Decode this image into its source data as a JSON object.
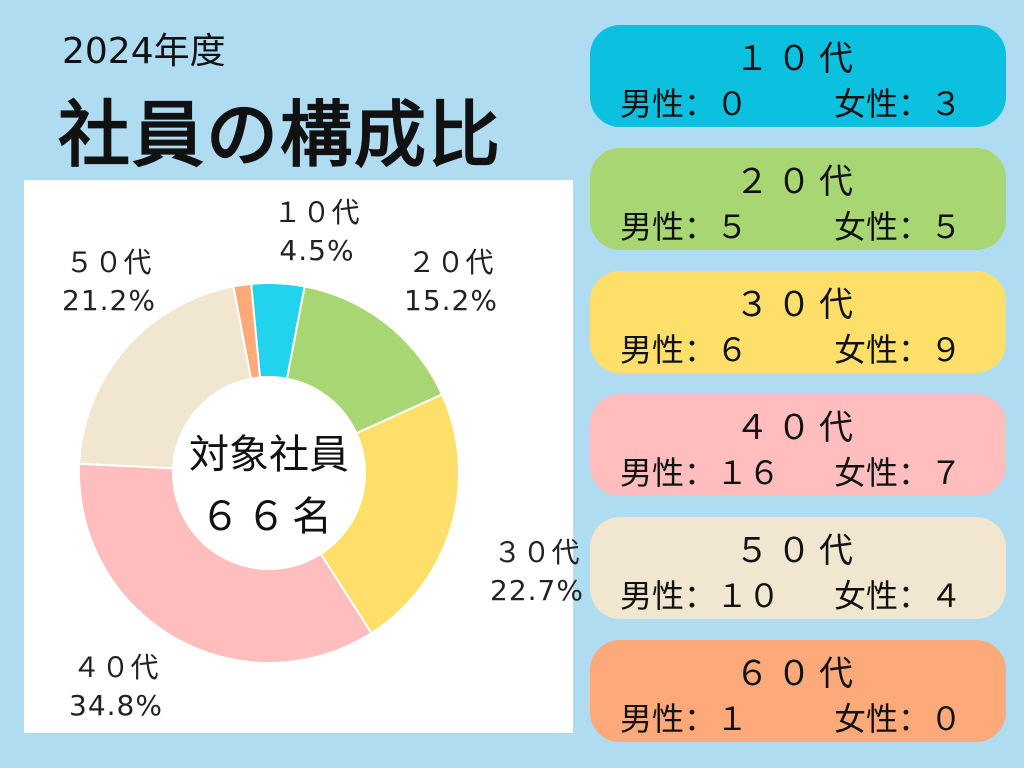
{
  "header": {
    "year": "2024年度",
    "title": "社員の構成比"
  },
  "chart_data": {
    "type": "pie",
    "donut": true,
    "center_label": [
      "対象社員",
      "６６名"
    ],
    "slices": [
      {
        "label": "１０代",
        "percent_text": "4.5%",
        "value": 4.5,
        "color": "#22d3ee"
      },
      {
        "label": "２０代",
        "percent_text": "15.2%",
        "value": 15.2,
        "color": "#a8d672"
      },
      {
        "label": "３０代",
        "percent_text": "22.7%",
        "value": 22.7,
        "color": "#fedf6a"
      },
      {
        "label": "４０代",
        "percent_text": "34.8%",
        "value": 34.8,
        "color": "#ffbdbd"
      },
      {
        "label": "５０代",
        "percent_text": "21.2%",
        "value": 21.2,
        "color": "#f1e6cf"
      },
      {
        "label": "６０代",
        "percent_text": "",
        "value": 1.5,
        "color": "#fda979"
      }
    ]
  },
  "cards": [
    {
      "title": "１０代",
      "male": "男性：０",
      "female": "女性：３",
      "color": "#0cc0df"
    },
    {
      "title": "２０代",
      "male": "男性：５",
      "female": "女性：５",
      "color": "#a8d672"
    },
    {
      "title": "３０代",
      "male": "男性：６",
      "female": "女性：９",
      "color": "#fedf6a"
    },
    {
      "title": "４０代",
      "male": "男性：１６",
      "female": "女性：７",
      "color": "#ffbdbd"
    },
    {
      "title": "５０代",
      "male": "男性：１０",
      "female": "女性：４",
      "color": "#f1e6cf"
    },
    {
      "title": "６０代",
      "male": "男性：１",
      "female": "女性：０",
      "color": "#fda979"
    }
  ]
}
